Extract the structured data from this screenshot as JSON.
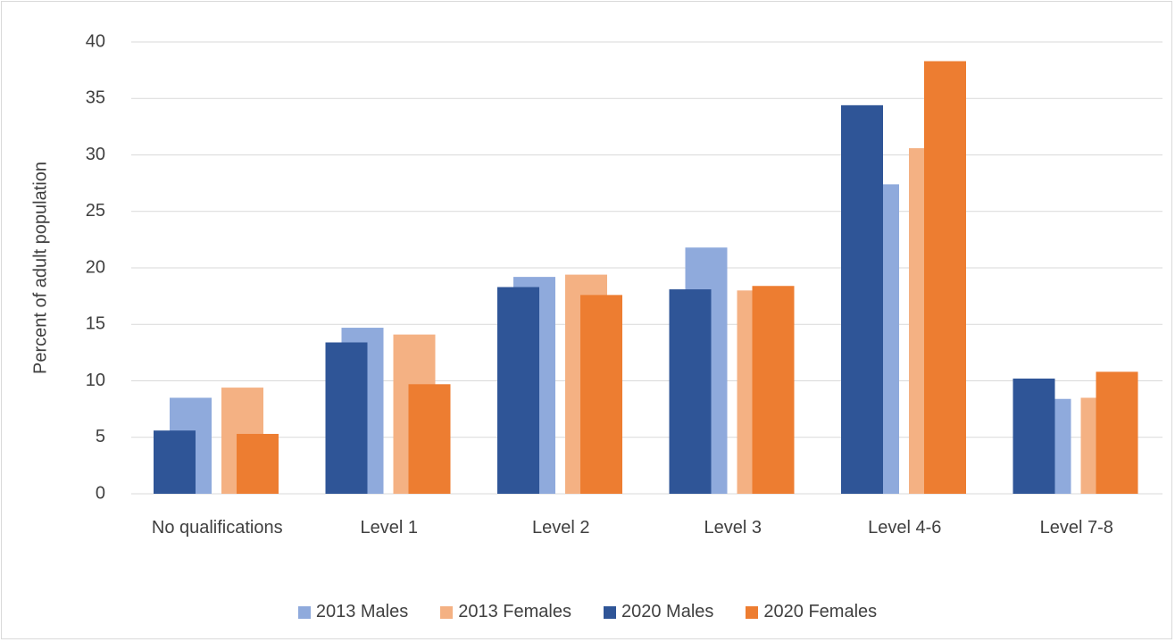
{
  "chart_data": {
    "type": "bar",
    "y_label": "Percent of adult population",
    "categories": [
      "No qualifications",
      "Level 1",
      "Level 2",
      "Level 3",
      "Level 4-6",
      "Level 7-8"
    ],
    "series": [
      {
        "name": "2013 Males",
        "color": "#8faadc",
        "values": [
          8.5,
          14.7,
          19.2,
          21.8,
          27.4,
          8.4
        ]
      },
      {
        "name": "2013 Females",
        "color": "#f4b183",
        "values": [
          9.4,
          14.1,
          19.4,
          18.0,
          30.6,
          8.5
        ]
      },
      {
        "name": "2020 Males",
        "color": "#2f5597",
        "values": [
          5.6,
          13.4,
          18.3,
          18.1,
          34.4,
          10.2
        ]
      },
      {
        "name": "2020 Females",
        "color": "#ed7d31",
        "values": [
          5.3,
          9.7,
          17.6,
          18.4,
          38.3,
          10.8
        ]
      }
    ],
    "ylim": [
      0,
      40
    ],
    "yticks": [
      0,
      5,
      10,
      15,
      20,
      25,
      30,
      35,
      40
    ],
    "grid": true,
    "legend": "bottom"
  }
}
